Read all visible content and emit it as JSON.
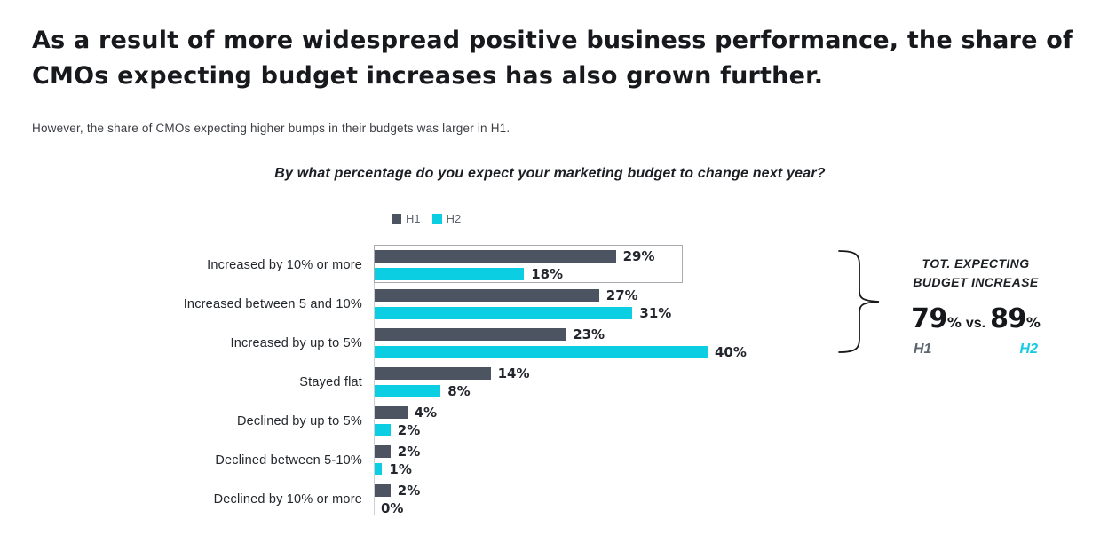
{
  "page": {
    "headline": "As a result of more widespread positive business performance, the share of CMOs expecting budget increases has also grown further.",
    "subtitle": "However, the share of CMOs expecting higher bumps in their budgets was larger in H1."
  },
  "chart_data": {
    "type": "bar",
    "orientation": "horizontal",
    "title": "By what percentage do you expect your marketing budget to change next year?",
    "categories": [
      "Increased by 10% or more",
      "Increased between 5 and 10%",
      "Increased by up to 5%",
      "Stayed flat",
      "Declined by up to 5%",
      "Declined between 5-10%",
      "Declined by 10% or more"
    ],
    "series": [
      {
        "name": "H1",
        "color": "#4B5460",
        "values": [
          29,
          27,
          23,
          14,
          4,
          2,
          2
        ]
      },
      {
        "name": "H2",
        "color": "#0CCEE2",
        "values": [
          18,
          31,
          40,
          8,
          2,
          1,
          0
        ]
      }
    ],
    "value_suffix": "%",
    "xlim": [
      0,
      42
    ],
    "grid": false,
    "legend_position": "top",
    "highlight": {
      "category": "Increased by 10% or more",
      "category_index": 0
    }
  },
  "annotation": {
    "title_line1": "TOT. EXPECTING",
    "title_line2": "BUDGET INCREASE",
    "h1_value": "79",
    "h2_value": "89",
    "value_suffix": "%",
    "vs_label": "vs.",
    "h1_label": "H1",
    "h2_label": "H2",
    "h1_color": "#5C6670",
    "h2_color": "#14CBE2"
  }
}
